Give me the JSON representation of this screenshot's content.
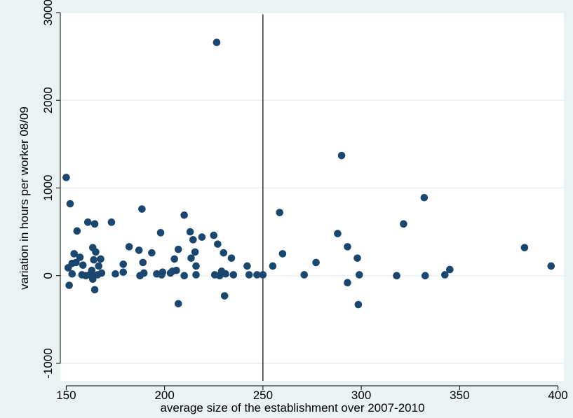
{
  "chart_data": {
    "type": "scatter",
    "title": "",
    "xlabel": "average size of the establishment over 2007-2010",
    "ylabel": "variation in hours per worker 08/09",
    "xlim": [
      147,
      403
    ],
    "ylim": [
      -1200,
      3000
    ],
    "xticks": [
      150,
      200,
      250,
      300,
      350,
      400
    ],
    "yticks": [
      -1000,
      0,
      1000,
      2000,
      3000
    ],
    "ytick_labels": [
      "-1000",
      "0",
      "1000",
      "2000",
      "3000"
    ],
    "grid": "horizontal",
    "vline_x": 250,
    "marker_color": "#1a476f",
    "background_color": "#eaf2f3",
    "plot_background_color": "#ffffff",
    "points": [
      [
        150,
        1120
      ],
      [
        151,
        90
      ],
      [
        151.5,
        -110
      ],
      [
        152,
        820
      ],
      [
        153,
        20
      ],
      [
        153,
        140
      ],
      [
        154,
        250
      ],
      [
        155,
        150
      ],
      [
        155.5,
        510
      ],
      [
        157,
        210
      ],
      [
        158,
        10
      ],
      [
        158.5,
        120
      ],
      [
        160,
        0
      ],
      [
        161,
        610
      ],
      [
        162,
        10
      ],
      [
        163,
        60
      ],
      [
        163.5,
        320
      ],
      [
        163.5,
        -40
      ],
      [
        164,
        180
      ],
      [
        164,
        0
      ],
      [
        164.5,
        590
      ],
      [
        164.5,
        -160
      ],
      [
        165,
        270
      ],
      [
        166,
        10
      ],
      [
        166.5,
        110
      ],
      [
        167.5,
        190
      ],
      [
        168,
        30
      ],
      [
        173,
        610
      ],
      [
        175,
        20
      ],
      [
        179,
        130
      ],
      [
        179,
        40
      ],
      [
        182,
        330
      ],
      [
        187,
        290
      ],
      [
        187.5,
        0
      ],
      [
        188.5,
        760
      ],
      [
        189,
        150
      ],
      [
        189.5,
        30
      ],
      [
        193.5,
        260
      ],
      [
        196,
        20
      ],
      [
        198,
        490
      ],
      [
        198.5,
        10
      ],
      [
        199,
        40
      ],
      [
        203,
        30
      ],
      [
        204,
        50
      ],
      [
        205,
        190
      ],
      [
        206,
        60
      ],
      [
        207,
        -320
      ],
      [
        207,
        300
      ],
      [
        210,
        690
      ],
      [
        210,
        0
      ],
      [
        213,
        500
      ],
      [
        213.5,
        200
      ],
      [
        214.5,
        410
      ],
      [
        215.5,
        270
      ],
      [
        216,
        10
      ],
      [
        216,
        110
      ],
      [
        219,
        440
      ],
      [
        225,
        460
      ],
      [
        225.5,
        10
      ],
      [
        226.5,
        2660
      ],
      [
        227,
        360
      ],
      [
        228,
        0
      ],
      [
        229,
        50
      ],
      [
        230,
        260
      ],
      [
        230.5,
        -230
      ],
      [
        231,
        20
      ],
      [
        234,
        200
      ],
      [
        235,
        10
      ],
      [
        242,
        110
      ],
      [
        243,
        10
      ],
      [
        247,
        10
      ],
      [
        250,
        10
      ],
      [
        255,
        110
      ],
      [
        258.5,
        720
      ],
      [
        260,
        250
      ],
      [
        271,
        10
      ],
      [
        277,
        150
      ],
      [
        288,
        480
      ],
      [
        290,
        1370
      ],
      [
        293,
        330
      ],
      [
        293,
        -80
      ],
      [
        298,
        200
      ],
      [
        298.5,
        -330
      ],
      [
        299,
        10
      ],
      [
        318,
        0
      ],
      [
        321.5,
        590
      ],
      [
        332,
        890
      ],
      [
        332.5,
        0
      ],
      [
        342.5,
        10
      ],
      [
        345,
        70
      ],
      [
        383,
        320
      ],
      [
        396.5,
        110
      ]
    ]
  }
}
